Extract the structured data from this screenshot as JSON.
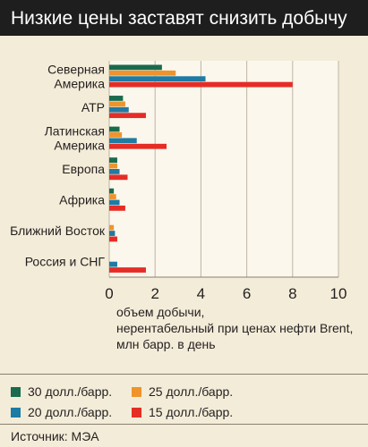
{
  "title": "Низкие цены заставят снизить добычу",
  "xlabel_lines": [
    "объем добычи,",
    "нерентабельный при ценах нефти Brent,",
    "млн барр. в день"
  ],
  "source": "Источник: МЭА",
  "chart_data": {
    "type": "bar",
    "orientation": "horizontal",
    "title": "Низкие цены заставят снизить добычу",
    "xlabel": "объем добычи, нерентабельный при ценах нефти Brent, млн барр. в день",
    "xlim": [
      0,
      10
    ],
    "xticks": [
      0,
      2,
      4,
      6,
      8,
      10
    ],
    "grid": true,
    "legend_position": "bottom",
    "categories": [
      [
        "Северная",
        "Америка"
      ],
      [
        "АТР"
      ],
      [
        "Латинская",
        "Америка"
      ],
      [
        "Европа"
      ],
      [
        "Африка"
      ],
      [
        "Ближний Восток"
      ],
      [
        "Россия и СНГ"
      ]
    ],
    "series": [
      {
        "name": "30 долл./барр.",
        "color": "#1a6b4f",
        "values": [
          2.3,
          0.6,
          0.45,
          0.35,
          0.2,
          0.0,
          0.0
        ]
      },
      {
        "name": "25 долл./барр.",
        "color": "#f0932b",
        "values": [
          2.9,
          0.7,
          0.55,
          0.35,
          0.3,
          0.2,
          0.0
        ]
      },
      {
        "name": "20 долл./барр.",
        "color": "#1e7ba3",
        "values": [
          4.2,
          0.85,
          1.2,
          0.45,
          0.45,
          0.25,
          0.35
        ]
      },
      {
        "name": "15 долл./барр.",
        "color": "#e52d26",
        "values": [
          8.0,
          1.6,
          2.5,
          0.8,
          0.7,
          0.35,
          1.6
        ]
      }
    ]
  }
}
